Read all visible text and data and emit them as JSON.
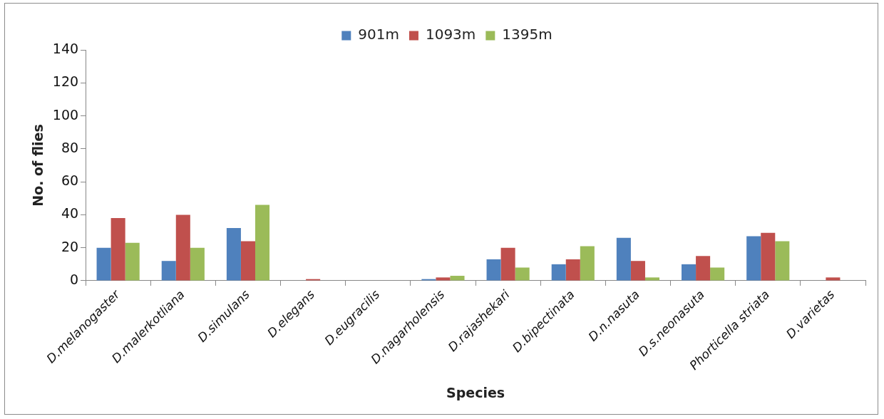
{
  "chart_data": {
    "type": "bar",
    "xlabel": "Species",
    "ylabel": "No. of flies",
    "categories": [
      "D.melanogaster",
      "D.malerkotliana",
      "D.simulans",
      "D.elegans",
      "D.eugracilis",
      "D.nagarholensis",
      "D.rajashekari",
      "D.bipectinata",
      "D.n.nasuta",
      "D.s.neonasuta",
      "Phorticella striata",
      "D.varietas"
    ],
    "series": [
      {
        "name": "901m",
        "color": "#4f81bd",
        "values": [
          20,
          12,
          32,
          0,
          0,
          1,
          13,
          10,
          26,
          10,
          27,
          0
        ]
      },
      {
        "name": "1093m",
        "color": "#c0504d",
        "values": [
          38,
          40,
          24,
          1,
          0,
          2,
          20,
          13,
          12,
          15,
          29,
          2
        ]
      },
      {
        "name": "1395m",
        "color": "#9bbb59",
        "values": [
          23,
          20,
          46,
          0,
          0,
          3,
          8,
          21,
          2,
          8,
          24,
          0
        ]
      }
    ],
    "ylim": [
      0,
      140
    ],
    "yticks": [
      0,
      20,
      40,
      60,
      80,
      100,
      120,
      140
    ],
    "grid": false,
    "legend": "top"
  }
}
